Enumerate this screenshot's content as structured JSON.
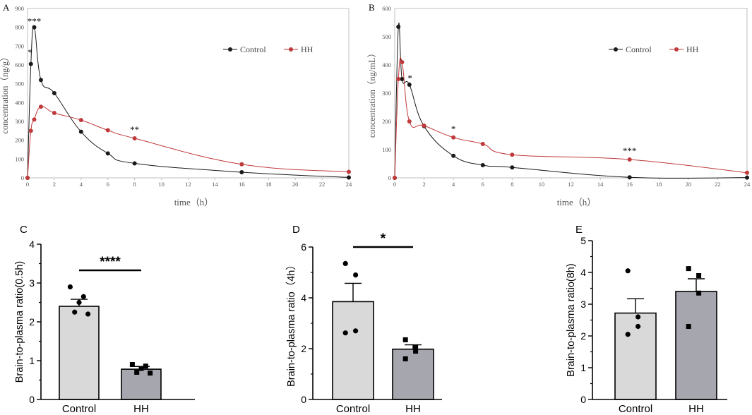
{
  "chart_data": [
    {
      "panel": "A",
      "type": "line",
      "xlabel": "time（h）",
      "ylabel": "concentration（ng/g）",
      "xlim": [
        0,
        24
      ],
      "ylim": [
        0,
        900
      ],
      "xticks": [
        0,
        2,
        4,
        6,
        8,
        10,
        12,
        14,
        16,
        18,
        20,
        22,
        24
      ],
      "yticks": [
        0,
        100,
        200,
        300,
        400,
        500,
        600,
        700,
        800,
        900
      ],
      "series": [
        {
          "name": "Control",
          "color": "#1a1a1a",
          "x": [
            0,
            0.25,
            0.5,
            1,
            2,
            4,
            6,
            8,
            16,
            24
          ],
          "y": [
            0,
            605,
            800,
            520,
            450,
            245,
            130,
            77,
            30,
            2
          ]
        },
        {
          "name": "HH",
          "color": "#c0393b",
          "x": [
            0,
            0.25,
            0.5,
            1,
            2,
            4,
            6,
            8,
            16,
            24
          ],
          "y": [
            0,
            250,
            310,
            378,
            345,
            307,
            253,
            210,
            72,
            32
          ]
        }
      ],
      "annotations": [
        {
          "text": "*",
          "x": 0.25,
          "y": 605
        },
        {
          "text": "***",
          "x": 0.5,
          "y": 800
        },
        {
          "text": "**",
          "x": 8,
          "y": 210
        }
      ]
    },
    {
      "panel": "B",
      "type": "line",
      "xlabel": "time（h）",
      "ylabel": "concentration（ng/mL）",
      "xlim": [
        0,
        24
      ],
      "ylim": [
        0,
        600
      ],
      "xticks": [
        0,
        2,
        4,
        6,
        8,
        10,
        12,
        14,
        16,
        18,
        20,
        22,
        24
      ],
      "yticks": [
        0,
        100,
        200,
        300,
        400,
        500,
        600
      ],
      "series": [
        {
          "name": "Control",
          "color": "#1a1a1a",
          "x": [
            0,
            0.25,
            0.5,
            1,
            2,
            4,
            6,
            8,
            16,
            24
          ],
          "y": [
            0,
            535,
            350,
            330,
            183,
            78,
            45,
            37,
            2,
            1
          ]
        },
        {
          "name": "HH",
          "color": "#c0393b",
          "x": [
            0,
            0.25,
            0.5,
            1,
            2,
            4,
            6,
            8,
            16,
            24
          ],
          "y": [
            0,
            350,
            410,
            200,
            185,
            143,
            120,
            82,
            65,
            18
          ]
        }
      ],
      "annotations": [
        {
          "text": "*",
          "x": 1,
          "y": 330
        },
        {
          "text": "*",
          "x": 4,
          "y": 143
        },
        {
          "text": "***",
          "x": 16,
          "y": 65
        }
      ]
    },
    {
      "panel": "C",
      "type": "bar",
      "ylabel": "Brain-to-plasma ratio(0.5h)",
      "categories": [
        "Control",
        "HH"
      ],
      "values": [
        2.4,
        0.78
      ],
      "errors": [
        0.18,
        0.07
      ],
      "points": [
        [
          2.9,
          2.65,
          2.5,
          2.25,
          2.2
        ],
        [
          0.9,
          0.86,
          0.8,
          0.7,
          0.68
        ]
      ],
      "ylim": [
        0,
        4
      ],
      "yticks": [
        0,
        1,
        2,
        3,
        4
      ],
      "significance": "****"
    },
    {
      "panel": "D",
      "type": "bar",
      "ylabel": "Brain-to-plasma ratio（4h）",
      "categories": [
        "Control",
        "HH"
      ],
      "values": [
        3.85,
        1.98
      ],
      "errors": [
        0.72,
        0.17
      ],
      "points": [
        [
          5.35,
          4.9,
          2.7,
          2.62
        ],
        [
          2.35,
          2.05,
          1.9,
          1.6
        ]
      ],
      "ylim": [
        0,
        6
      ],
      "yticks": [
        0,
        2,
        4,
        6
      ],
      "significance": "*"
    },
    {
      "panel": "E",
      "type": "bar",
      "ylabel": "Brain-to-plasma ratio(8h)",
      "categories": [
        "Control",
        "HH"
      ],
      "values": [
        2.72,
        3.4
      ],
      "errors": [
        0.45,
        0.4
      ],
      "points": [
        [
          4.05,
          2.6,
          2.3,
          2.05
        ],
        [
          4.12,
          3.9,
          3.35,
          2.3
        ]
      ],
      "ylim": [
        0,
        5
      ],
      "yticks": [
        0,
        1,
        2,
        3,
        4,
        5
      ],
      "significance": ""
    }
  ],
  "colors": {
    "control_line": "#1a1a1a",
    "hh_line": "#c0393b",
    "control_bar": "#d9d9d9",
    "hh_bar": "#a6a6ae"
  }
}
